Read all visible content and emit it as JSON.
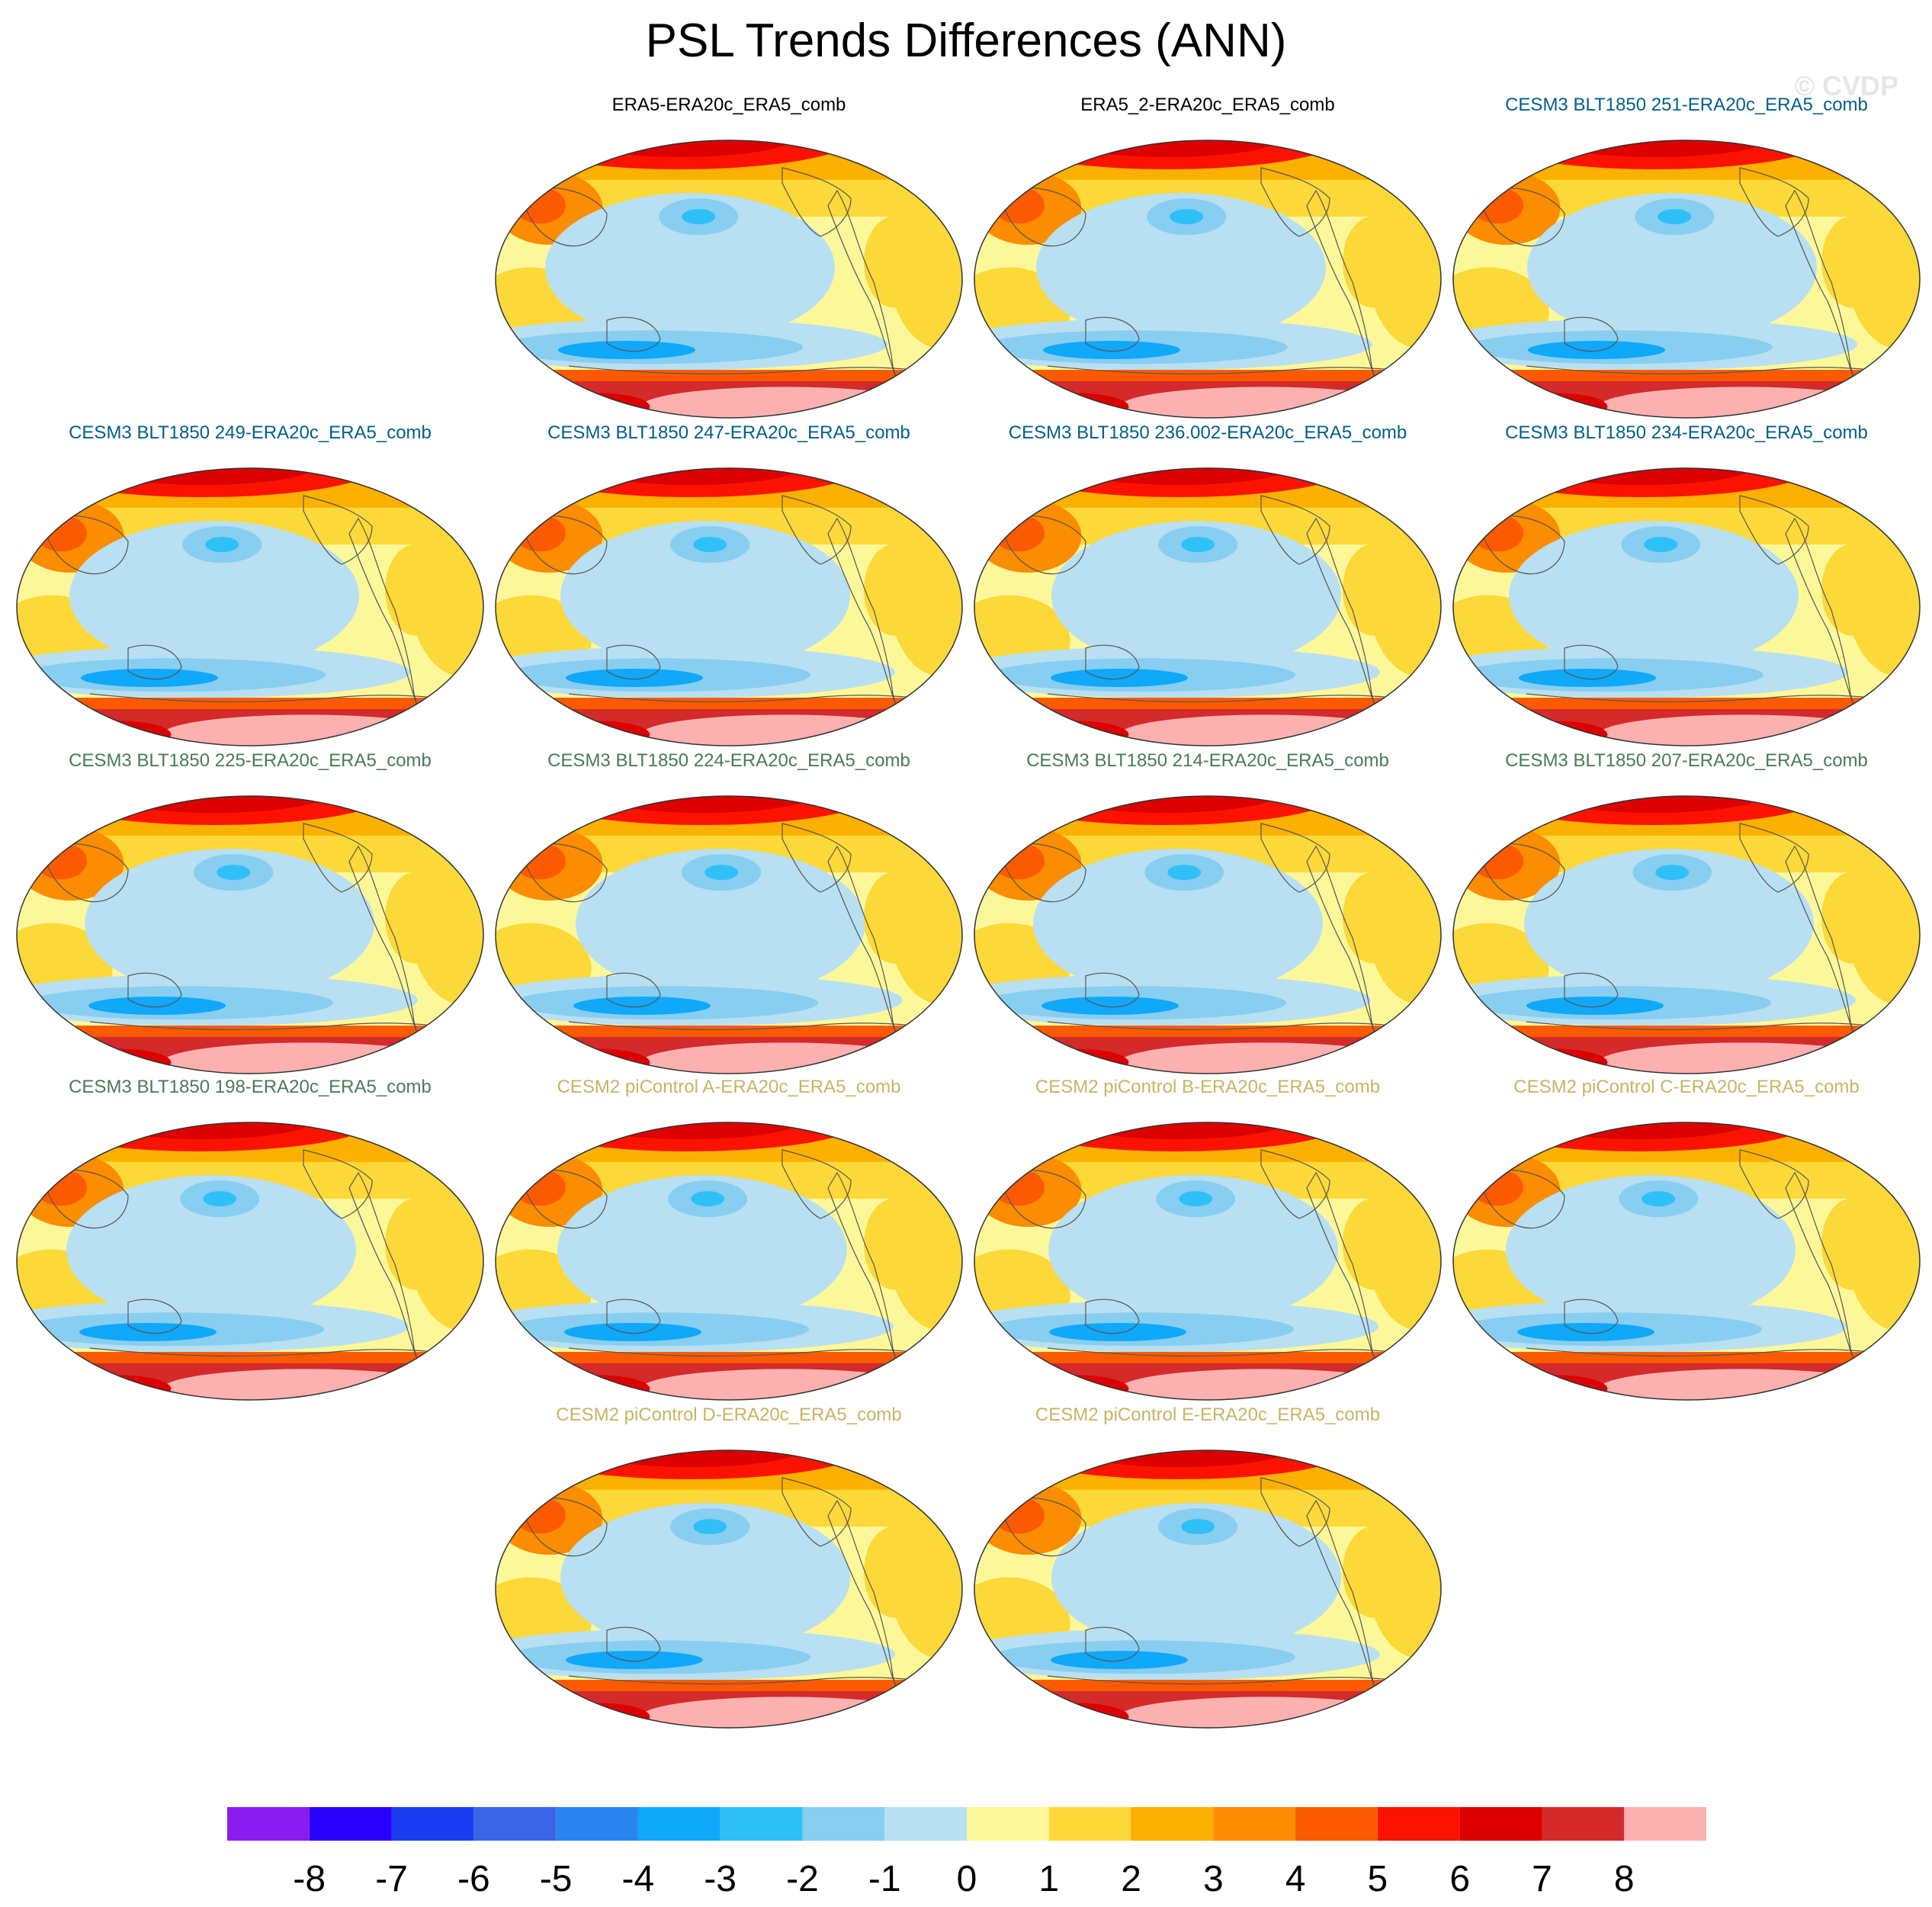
{
  "title": "PSL Trends Differences (ANN)",
  "watermark": "© CVDP",
  "chart_data": {
    "type": "heatmap",
    "title": "PSL Trends Differences (ANN)",
    "projection": "Robinson (global, Pacific-centered)",
    "panels": [
      {
        "label": "ERA5-ERA20c_ERA5_comb",
        "group": "obs"
      },
      {
        "label": "ERA5_2-ERA20c_ERA5_comb",
        "group": "obs"
      },
      {
        "label": "CESM3 BLT1850 251-ERA20c_ERA5_comb",
        "group": "cesm3a"
      },
      {
        "label": "CESM3 BLT1850 249-ERA20c_ERA5_comb",
        "group": "cesm3a"
      },
      {
        "label": "CESM3 BLT1850 247-ERA20c_ERA5_comb",
        "group": "cesm3a"
      },
      {
        "label": "CESM3 BLT1850 236.002-ERA20c_ERA5_comb",
        "group": "cesm3a"
      },
      {
        "label": "CESM3 BLT1850 234-ERA20c_ERA5_comb",
        "group": "cesm3a"
      },
      {
        "label": "CESM3 BLT1850 225-ERA20c_ERA5_comb",
        "group": "cesm3b"
      },
      {
        "label": "CESM3 BLT1850 224-ERA20c_ERA5_comb",
        "group": "cesm3b"
      },
      {
        "label": "CESM3 BLT1850 214-ERA20c_ERA5_comb",
        "group": "cesm3b"
      },
      {
        "label": "CESM3 BLT1850 207-ERA20c_ERA5_comb",
        "group": "cesm3b"
      },
      {
        "label": "CESM3 BLT1850 198-ERA20c_ERA5_comb",
        "group": "cesm3b"
      },
      {
        "label": "CESM2 piControl A-ERA20c_ERA5_comb",
        "group": "cesm2"
      },
      {
        "label": "CESM2 piControl B-ERA20c_ERA5_comb",
        "group": "cesm2"
      },
      {
        "label": "CESM2 piControl C-ERA20c_ERA5_comb",
        "group": "cesm2"
      },
      {
        "label": "CESM2 piControl D-ERA20c_ERA5_comb",
        "group": "cesm2"
      },
      {
        "label": "CESM2 piControl E-ERA20c_ERA5_comb",
        "group": "cesm2"
      }
    ],
    "colorbar": {
      "ticks": [
        "-8",
        "-7",
        "-6",
        "-5",
        "-4",
        "-3",
        "-2",
        "-1",
        "0",
        "1",
        "2",
        "3",
        "4",
        "5",
        "6",
        "7",
        "8"
      ],
      "colors": [
        "#8a1cf0",
        "#2a00ff",
        "#1a3cf0",
        "#3c64e6",
        "#2a84f0",
        "#10a8f8",
        "#30c0f8",
        "#88cef0",
        "#b8e0f2",
        "#fcf89a",
        "#fcd838",
        "#fcb000",
        "#fc8c00",
        "#fc5a00",
        "#fc1200",
        "#dc0000",
        "#d42a2a",
        "#fcb0b0"
      ]
    },
    "label_colors": {
      "obs": "#000000",
      "cesm3a": "#005f8a",
      "cesm3b": "#4a7a5a",
      "cesm2": "#c8b464"
    }
  }
}
